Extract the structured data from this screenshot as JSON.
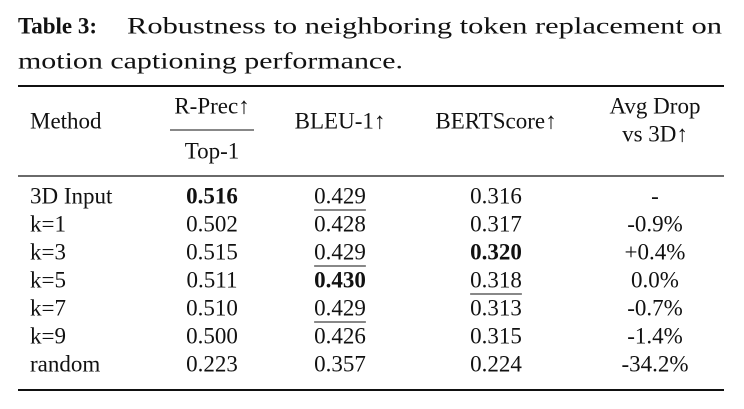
{
  "caption": {
    "label": "Table 3:",
    "lines": [
      "Robustness to neighboring token replacement on",
      "motion captioning performance."
    ]
  },
  "table": {
    "header": {
      "method": "Method",
      "rprec": "R-Prec↑",
      "rprec_sub": "Top-1",
      "bleu": "BLEU-1↑",
      "bertscore": "BERTScore↑",
      "avgdrop": [
        "Avg Drop",
        "vs 3D↑"
      ]
    },
    "rows": [
      [
        "3D Input",
        "0.516",
        "0.429",
        "0.316",
        "-"
      ],
      [
        "k=1",
        "0.502",
        "0.428",
        "0.317",
        "-0.9%"
      ],
      [
        "k=3",
        "0.515",
        "0.429",
        "0.320",
        "+0.4%"
      ],
      [
        "k=5",
        "0.511",
        "0.430",
        "0.318",
        "0.0%"
      ],
      [
        "k=7",
        "0.510",
        "0.429",
        "0.313",
        "-0.7%"
      ],
      [
        "k=9",
        "0.500",
        "0.426",
        "0.315",
        "-1.4%"
      ],
      [
        "random",
        "0.223",
        "0.357",
        "0.224",
        "-34.2%"
      ]
    ]
  }
}
